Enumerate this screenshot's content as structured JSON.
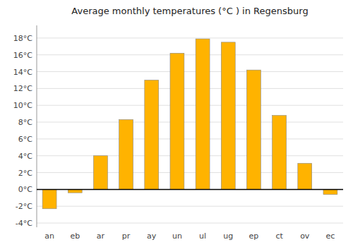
{
  "chart_data": {
    "type": "bar",
    "title": "Average monthly temperatures (°C ) in Regensburg",
    "categories": [
      "an",
      "eb",
      "ar",
      "pr",
      "ay",
      "un",
      "ul",
      "ug",
      "ep",
      "ct",
      "ov",
      "ec"
    ],
    "values": [
      -2.3,
      -0.4,
      4.0,
      8.3,
      13.0,
      16.2,
      17.9,
      17.5,
      14.2,
      8.8,
      3.1,
      -0.6
    ],
    "color": "#FFB300",
    "ylim": [
      -4.5,
      19.5
    ],
    "yticks": [
      {
        "value": -4,
        "label": "-4°C"
      },
      {
        "value": -2,
        "label": "-2°C"
      },
      {
        "value": 0,
        "label": "0°C"
      },
      {
        "value": 2,
        "label": "2°C"
      },
      {
        "value": 4,
        "label": "4°C"
      },
      {
        "value": 6,
        "label": "6°C"
      },
      {
        "value": 8,
        "label": "8°C"
      },
      {
        "value": 10,
        "label": "10°C"
      },
      {
        "value": 12,
        "label": "12°C"
      },
      {
        "value": 14,
        "label": "14°C"
      },
      {
        "value": 16,
        "label": "16°C"
      },
      {
        "value": 18,
        "label": "18°C"
      }
    ],
    "grid": true
  }
}
